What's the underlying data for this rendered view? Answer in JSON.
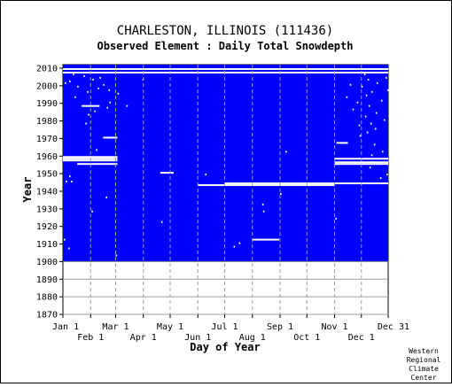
{
  "chart_data": {
    "type": "heatmap",
    "title": "CHARLESTON, ILLINOIS   (111436)",
    "subtitle": "Observed Element : Daily Total Snowdepth",
    "xlabel": "Day of Year",
    "ylabel": "Year",
    "credit": [
      "Western",
      "Regional",
      "Climate",
      "Center"
    ],
    "x_day_range": [
      1,
      365
    ],
    "ylim": [
      1870,
      2012
    ],
    "data_start_year": 1900,
    "data_color": "#0000ff",
    "missing_color": "#ffffff",
    "x_ticks_top": [
      {
        "label": "Jan 1",
        "day": 1
      },
      {
        "label": "Mar 1",
        "day": 60
      },
      {
        "label": "May 1",
        "day": 121
      },
      {
        "label": "Jul 1",
        "day": 182
      },
      {
        "label": "Sep 1",
        "day": 244
      },
      {
        "label": "Nov 1",
        "day": 305
      },
      {
        "label": "Dec 31",
        "day": 365
      }
    ],
    "x_ticks_bottom": [
      {
        "label": "Feb 1",
        "day": 32
      },
      {
        "label": "Apr 1",
        "day": 91
      },
      {
        "label": "Jun 1",
        "day": 152
      },
      {
        "label": "Aug 1",
        "day": 213
      },
      {
        "label": "Oct 1",
        "day": 274
      },
      {
        "label": "Dec 1",
        "day": 335
      }
    ],
    "y_ticks": [
      1870,
      1880,
      1890,
      1900,
      1910,
      1920,
      1930,
      1940,
      1950,
      1960,
      1970,
      1980,
      1990,
      2000,
      2010
    ],
    "missing_segments": [
      {
        "year": 2009,
        "start_day": 1,
        "end_day": 365
      },
      {
        "year": 2007,
        "start_day": 1,
        "end_day": 365
      },
      {
        "year": 1988,
        "start_day": 22,
        "end_day": 42
      },
      {
        "year": 1970,
        "start_day": 46,
        "end_day": 62
      },
      {
        "year": 1967,
        "start_day": 307,
        "end_day": 320
      },
      {
        "year": 1959,
        "start_day": 1,
        "end_day": 62
      },
      {
        "year": 1958,
        "start_day": 1,
        "end_day": 62
      },
      {
        "year": 1957,
        "start_day": 1,
        "end_day": 62
      },
      {
        "year": 1958,
        "start_day": 305,
        "end_day": 365
      },
      {
        "year": 1956,
        "start_day": 305,
        "end_day": 365
      },
      {
        "year": 1955,
        "start_day": 17,
        "end_day": 62
      },
      {
        "year": 1955,
        "start_day": 305,
        "end_day": 365
      },
      {
        "year": 1950,
        "start_day": 110,
        "end_day": 125
      },
      {
        "year": 1944,
        "start_day": 182,
        "end_day": 305
      },
      {
        "year": 1944,
        "start_day": 305,
        "end_day": 365
      },
      {
        "year": 1943,
        "start_day": 152,
        "end_day": 305
      },
      {
        "year": 1912,
        "start_day": 213,
        "end_day": 243
      }
    ],
    "missing_cells": [
      {
        "year": 2006,
        "day": 12
      },
      {
        "year": 2005,
        "day": 24
      },
      {
        "year": 2004,
        "day": 42
      },
      {
        "year": 2003,
        "day": 34
      },
      {
        "year": 2002,
        "day": 8
      },
      {
        "year": 2001,
        "day": 3
      },
      {
        "year": 2000,
        "day": 46
      },
      {
        "year": 1999,
        "day": 17
      },
      {
        "year": 1998,
        "day": 40
      },
      {
        "year": 1997,
        "day": 52
      },
      {
        "year": 1996,
        "day": 28
      },
      {
        "year": 1995,
        "day": 62
      },
      {
        "year": 1993,
        "day": 14
      },
      {
        "year": 1990,
        "day": 53
      },
      {
        "year": 1987,
        "day": 50
      },
      {
        "year": 1985,
        "day": 36
      },
      {
        "year": 1983,
        "day": 29
      },
      {
        "year": 1978,
        "day": 26
      },
      {
        "year": 1963,
        "day": 38
      },
      {
        "year": 1958,
        "day": 3
      },
      {
        "year": 1948,
        "day": 8
      },
      {
        "year": 1945,
        "day": 4
      },
      {
        "year": 1945,
        "day": 10
      },
      {
        "year": 1936,
        "day": 49
      },
      {
        "year": 1928,
        "day": 33
      },
      {
        "year": 1903,
        "day": 60
      },
      {
        "year": 2006,
        "day": 338
      },
      {
        "year": 2004,
        "day": 362
      },
      {
        "year": 2003,
        "day": 342
      },
      {
        "year": 2001,
        "day": 352
      },
      {
        "year": 2000,
        "day": 322
      },
      {
        "year": 1999,
        "day": 335
      },
      {
        "year": 1997,
        "day": 364
      },
      {
        "year": 1996,
        "day": 346
      },
      {
        "year": 1994,
        "day": 340
      },
      {
        "year": 1993,
        "day": 318
      },
      {
        "year": 1991,
        "day": 357
      },
      {
        "year": 1990,
        "day": 330
      },
      {
        "year": 1988,
        "day": 343
      },
      {
        "year": 1986,
        "day": 325
      },
      {
        "year": 1984,
        "day": 351
      },
      {
        "year": 1982,
        "day": 339
      },
      {
        "year": 1980,
        "day": 360
      },
      {
        "year": 1978,
        "day": 345
      },
      {
        "year": 1977,
        "day": 332
      },
      {
        "year": 1975,
        "day": 350
      },
      {
        "year": 1973,
        "day": 341
      },
      {
        "year": 1971,
        "day": 333
      },
      {
        "year": 1966,
        "day": 349
      },
      {
        "year": 1962,
        "day": 358
      },
      {
        "year": 1960,
        "day": 346
      },
      {
        "year": 1953,
        "day": 344
      },
      {
        "year": 1949,
        "day": 363
      },
      {
        "year": 1947,
        "day": 356
      },
      {
        "year": 1924,
        "day": 306
      },
      {
        "year": 2003,
        "day": 90
      },
      {
        "year": 1988,
        "day": 72
      },
      {
        "year": 1922,
        "day": 111
      },
      {
        "year": 1949,
        "day": 160
      },
      {
        "year": 1938,
        "day": 244
      },
      {
        "year": 1932,
        "day": 224
      },
      {
        "year": 1928,
        "day": 225
      },
      {
        "year": 1962,
        "day": 250
      },
      {
        "year": 1908,
        "day": 192
      },
      {
        "year": 1910,
        "day": 198
      },
      {
        "year": 1907,
        "day": 7
      },
      {
        "year": 1912,
        "day": 2
      }
    ]
  }
}
